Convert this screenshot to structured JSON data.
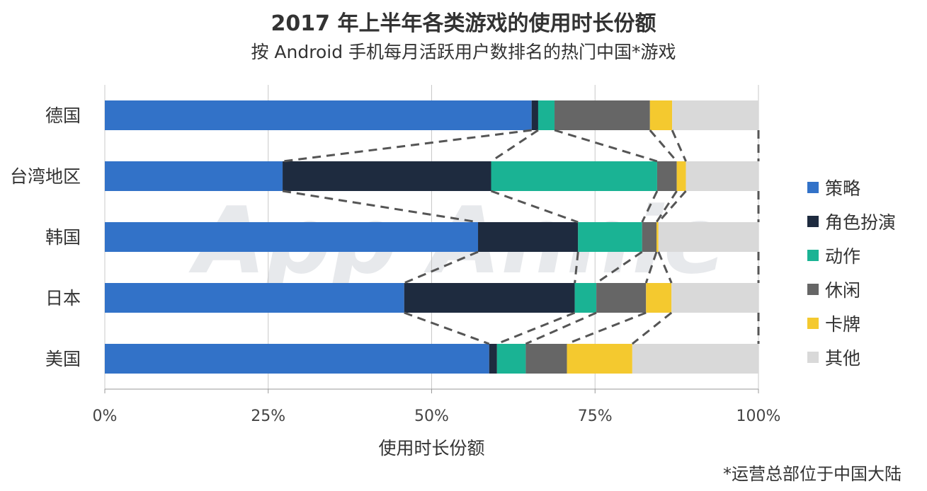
{
  "title": "2017 年上半年各类游戏的使用时长份额",
  "subtitle": "按 Android 手机每月活跃用户数排名的热门中国*游戏",
  "footnote": "*运营总部位于中国大陆",
  "watermark": "App Annie",
  "colors": {
    "策略": "#3272c8",
    "角色扮演": "#1e2b3f",
    "动作": "#1ab394",
    "休闲": "#666666",
    "卡牌": "#f4c92f",
    "其他": "#d9d9d9"
  },
  "chart_data": {
    "type": "bar",
    "orientation": "horizontal",
    "stacked": true,
    "categories": [
      "德国",
      "台湾地区",
      "韩国",
      "日本",
      "美国"
    ],
    "series": [
      {
        "name": "策略",
        "values": [
          65.3,
          27.2,
          57.1,
          45.8,
          58.8
        ]
      },
      {
        "name": "角色扮演",
        "values": [
          1.0,
          31.9,
          15.3,
          26.1,
          1.2
        ]
      },
      {
        "name": "动作",
        "values": [
          2.5,
          25.4,
          9.8,
          3.3,
          4.4
        ]
      },
      {
        "name": "休闲",
        "values": [
          14.6,
          3.0,
          2.2,
          7.6,
          6.3
        ]
      },
      {
        "name": "卡牌",
        "values": [
          3.4,
          1.4,
          0.3,
          3.9,
          10.0
        ]
      },
      {
        "name": "其他",
        "values": [
          13.2,
          11.1,
          15.3,
          13.3,
          19.3
        ]
      }
    ],
    "xlabel": "使用时长份额",
    "ylabel": "",
    "xlim": [
      0,
      100
    ],
    "xticks": [
      "0%",
      "25%",
      "50%",
      "75%",
      "100%"
    ],
    "grid": "vertical",
    "legend": "right",
    "connectors": "dashed lines linking segment boundaries between adjacent bars"
  }
}
